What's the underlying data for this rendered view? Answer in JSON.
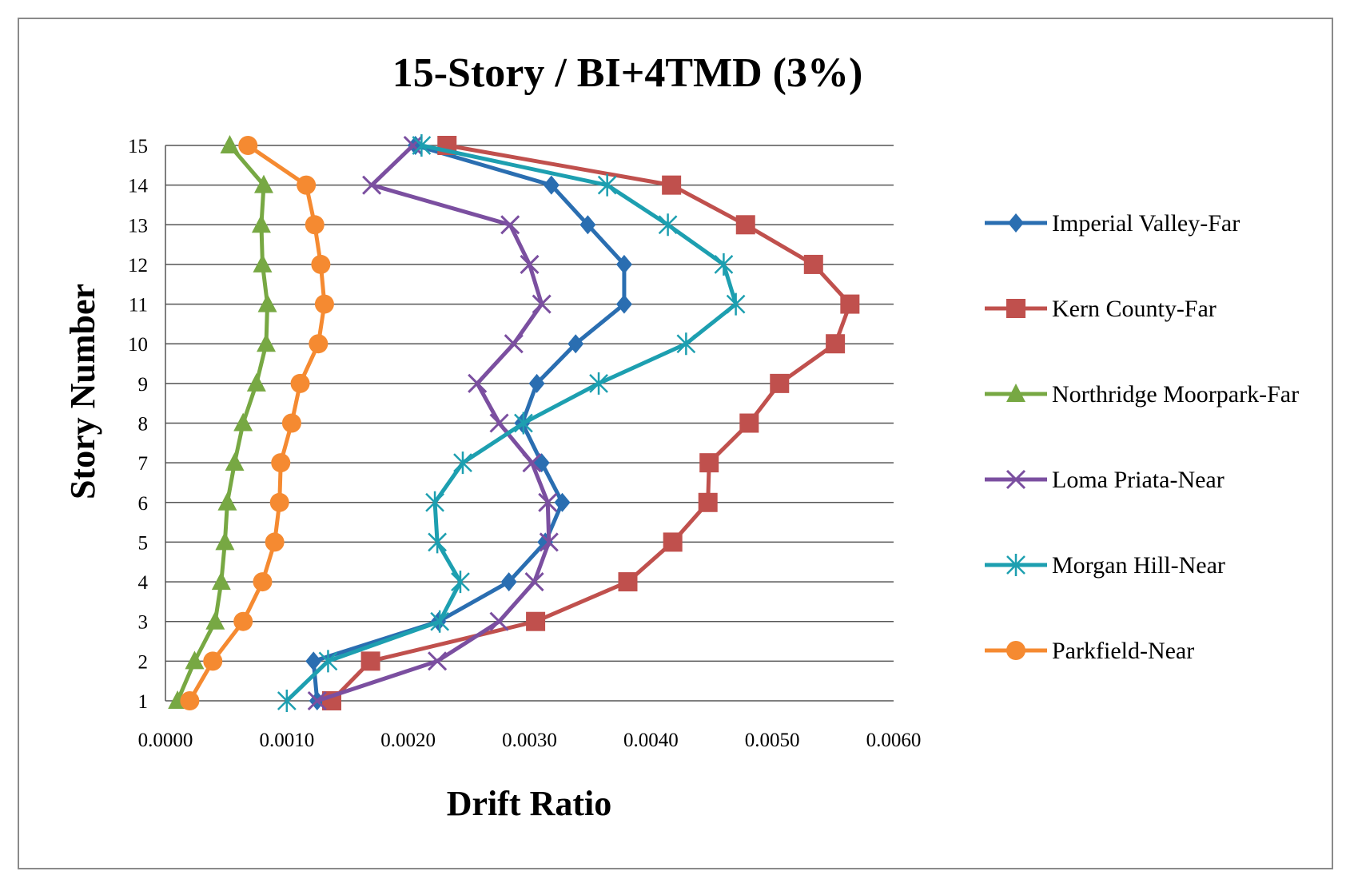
{
  "chart_data": {
    "type": "line",
    "title": "15-Story / BI+4TMD (3%)",
    "xlabel": "Drift Ratio",
    "ylabel": "Story  Number",
    "xlim": [
      0,
      0.006
    ],
    "ylim": [
      1,
      15
    ],
    "x_ticks": [
      "0.0000",
      "0.0010",
      "0.0020",
      "0.0030",
      "0.0040",
      "0.0050",
      "0.0060"
    ],
    "y_ticks": [
      "1",
      "2",
      "3",
      "4",
      "5",
      "6",
      "7",
      "8",
      "9",
      "10",
      "11",
      "12",
      "13",
      "14",
      "15"
    ],
    "grid": true,
    "legend_position": "right",
    "stories": [
      1,
      2,
      3,
      4,
      5,
      6,
      7,
      8,
      9,
      10,
      11,
      12,
      13,
      14,
      15
    ],
    "series": [
      {
        "name": "Imperial Valley-Far",
        "color": "#2a6eb1",
        "marker": "diamond",
        "values": [
          0.00125,
          0.00122,
          0.00225,
          0.00283,
          0.00313,
          0.00327,
          0.0031,
          0.00294,
          0.00306,
          0.00338,
          0.00378,
          0.00378,
          0.00348,
          0.00318,
          0.00206
        ]
      },
      {
        "name": "Kern County-Far",
        "color": "#c0504d",
        "marker": "square",
        "values": [
          0.00137,
          0.00169,
          0.00305,
          0.00381,
          0.00418,
          0.00447,
          0.00448,
          0.00481,
          0.00506,
          0.00552,
          0.00564,
          0.00534,
          0.00478,
          0.00417,
          0.00232
        ]
      },
      {
        "name": "Northridge Moorpark-Far",
        "color": "#77a843",
        "marker": "triangle",
        "values": [
          0.0001,
          0.00024,
          0.00041,
          0.00046,
          0.00049,
          0.00051,
          0.00057,
          0.00064,
          0.00075,
          0.00083,
          0.00084,
          0.0008,
          0.00079,
          0.00081,
          0.00053
        ]
      },
      {
        "name": "Loma Priata-Near",
        "color": "#7b4fa0",
        "marker": "x",
        "values": [
          0.00125,
          0.00224,
          0.00275,
          0.00304,
          0.00316,
          0.00315,
          0.00302,
          0.00275,
          0.00257,
          0.00287,
          0.0031,
          0.003,
          0.00284,
          0.0017,
          0.00204
        ]
      },
      {
        "name": "Morgan Hill-Near",
        "color": "#1d9fb0",
        "marker": "asterisk",
        "values": [
          0.001,
          0.00134,
          0.00226,
          0.00243,
          0.00224,
          0.00222,
          0.00245,
          0.00295,
          0.00357,
          0.00429,
          0.0047,
          0.0046,
          0.00414,
          0.00364,
          0.00211
        ]
      },
      {
        "name": "Parkfield-Near",
        "color": "#f58a31",
        "marker": "circle",
        "values": [
          0.0002,
          0.00039,
          0.00064,
          0.0008,
          0.0009,
          0.00094,
          0.00095,
          0.00104,
          0.00111,
          0.00126,
          0.00131,
          0.00128,
          0.00123,
          0.00116,
          0.00068
        ]
      }
    ]
  }
}
